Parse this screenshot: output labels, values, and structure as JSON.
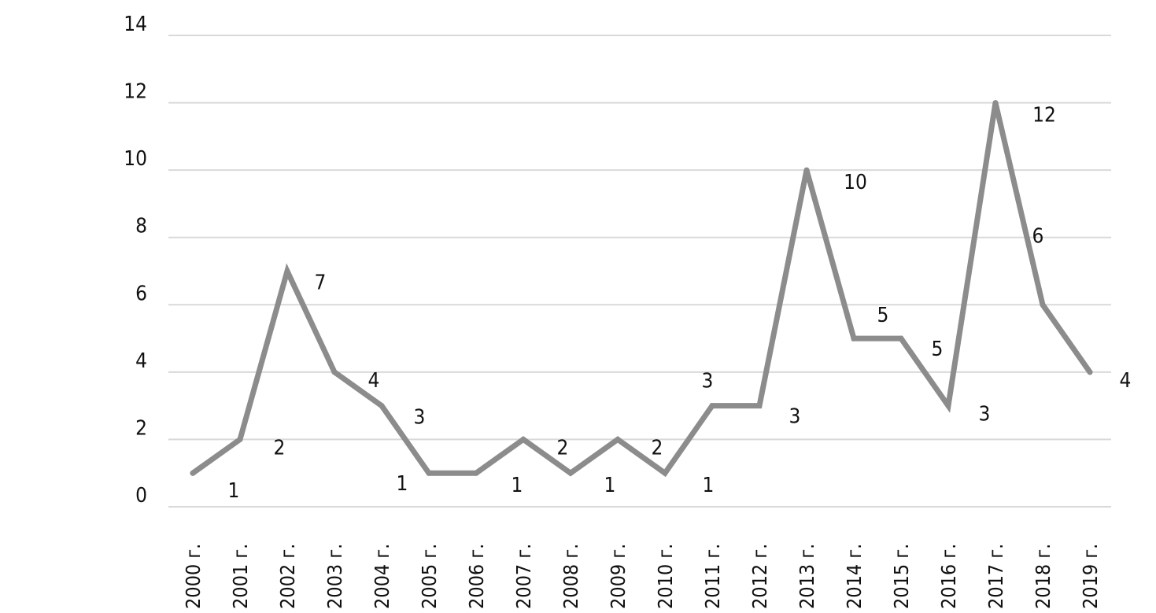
{
  "chart_data": {
    "type": "line",
    "title": "",
    "xlabel": "",
    "ylabel": "",
    "categories": [
      "2000 г.",
      "2001 г.",
      "2002 г.",
      "2003 г.",
      "2004 г.",
      "2005 г.",
      "2006 г.",
      "2007 г.",
      "2008 г.",
      "2009 г.",
      "2010 г.",
      "2011 г.",
      "2012 г.",
      "2013 г.",
      "2014 г.",
      "2015 г.",
      "2016 г.",
      "2017 г.",
      "2018 г.",
      "2019 г."
    ],
    "series": [
      {
        "values": [
          1,
          2,
          7,
          4,
          3,
          1,
          1,
          2,
          1,
          2,
          1,
          3,
          3,
          10,
          5,
          5,
          3,
          12,
          6,
          4
        ]
      }
    ],
    "data_labels": [
      "1",
      "2",
      "7",
      "4",
      "3",
      "1",
      "1",
      "2",
      "1",
      "2",
      "1",
      "3",
      "3",
      "10",
      "5",
      "5",
      "3",
      "12",
      "6",
      "4"
    ],
    "ylim": [
      0,
      14
    ],
    "yticks": [
      0,
      2,
      4,
      6,
      8,
      10,
      12,
      14
    ],
    "ytick_labels": [
      "0",
      "2",
      "4",
      "6",
      "8",
      "10",
      "12",
      "14"
    ],
    "grid": true,
    "legend": "none",
    "line_color": "#8c8c8c",
    "grid_color": "#d9d9d9"
  }
}
